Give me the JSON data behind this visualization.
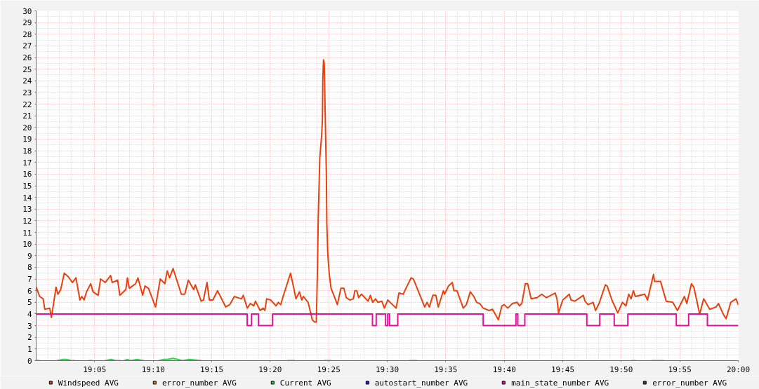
{
  "chart_data": {
    "type": "line",
    "xlim": [
      19.0,
      20.0
    ],
    "xticks": [
      {
        "value": 19.0833,
        "label": "19:05"
      },
      {
        "value": 19.1667,
        "label": "19:10"
      },
      {
        "value": 19.25,
        "label": "19:15"
      },
      {
        "value": 19.3333,
        "label": "19:20"
      },
      {
        "value": 19.4167,
        "label": "19:25"
      },
      {
        "value": 19.5,
        "label": "19:30"
      },
      {
        "value": 19.5833,
        "label": "19:35"
      },
      {
        "value": 19.6667,
        "label": "19:40"
      },
      {
        "value": 19.75,
        "label": "19:45"
      },
      {
        "value": 19.8333,
        "label": "19:50"
      },
      {
        "value": 19.9167,
        "label": "19:55"
      },
      {
        "value": 20.0,
        "label": "20:00"
      }
    ],
    "ylim": [
      0,
      30
    ],
    "yticks": [
      0,
      1,
      2,
      3,
      4,
      5,
      6,
      7,
      8,
      9,
      10,
      11,
      12,
      13,
      14,
      15,
      16,
      17,
      18,
      19,
      20,
      21,
      22,
      23,
      24,
      25,
      26,
      27,
      28,
      29,
      30
    ],
    "grid": true,
    "legend": "bottom",
    "series": [
      {
        "name": "Windspeed AVG",
        "color": "#e9400e",
        "x": [
          19.0,
          19.005,
          19.01,
          19.0123,
          19.0193,
          19.0217,
          19.0243,
          19.0283,
          19.031,
          19.035,
          19.04,
          19.0457,
          19.0517,
          19.0567,
          19.0623,
          19.065,
          19.0683,
          19.0717,
          19.0777,
          19.081,
          19.0883,
          19.0917,
          19.0983,
          19.106,
          19.1083,
          19.116,
          19.1193,
          19.1277,
          19.13,
          19.1327,
          19.1417,
          19.145,
          19.1517,
          19.155,
          19.16,
          19.17,
          19.1767,
          19.1833,
          19.1867,
          19.19,
          19.195,
          19.2067,
          19.2117,
          19.2167,
          19.2243,
          19.2267,
          19.235,
          19.2383,
          19.2433,
          19.2467,
          19.2517,
          19.2583,
          19.27,
          19.2757,
          19.2823,
          19.2923,
          19.295,
          19.3007,
          19.305,
          19.31,
          19.3123,
          19.319,
          19.3233,
          19.3257,
          19.3283,
          19.334,
          19.3417,
          19.345,
          19.3483,
          19.3517,
          19.3623,
          19.3673,
          19.37,
          19.375,
          19.3783,
          19.3807,
          19.3873,
          19.3933,
          19.3967,
          19.399,
          19.4007,
          19.4017,
          19.403,
          19.404,
          19.4067,
          19.4077,
          19.4083,
          19.4093,
          19.4103,
          19.411,
          19.4123,
          19.4133,
          19.414,
          19.4153,
          19.4173,
          19.42,
          19.424,
          19.429,
          19.434,
          19.4383,
          19.4417,
          19.4467,
          19.4517,
          19.454,
          19.4567,
          19.4593,
          19.4633,
          19.4727,
          19.476,
          19.4793,
          19.4833,
          19.4867,
          19.4923,
          19.496,
          19.5007,
          19.5127,
          19.5167,
          19.5227,
          19.534,
          19.5373,
          19.5533,
          19.5567,
          19.56,
          19.565,
          19.5693,
          19.5727,
          19.58,
          19.5817,
          19.5873,
          19.5927,
          19.595,
          19.5993,
          19.6083,
          19.6127,
          19.6183,
          19.6233,
          19.6273,
          19.6317,
          19.6367,
          19.645,
          19.65,
          19.6583,
          19.6633,
          19.6667,
          19.6717,
          19.6783,
          19.685,
          19.6883,
          19.6917,
          19.6967,
          19.7,
          19.705,
          19.7133,
          19.72,
          19.7267,
          19.7393,
          19.7417,
          19.744,
          19.75,
          19.7593,
          19.7617,
          19.7673,
          19.7793,
          19.7817,
          19.786,
          19.7933,
          19.7967,
          19.8017,
          19.8107,
          19.8133,
          19.82,
          19.8283,
          19.835,
          19.84,
          19.844,
          19.8473,
          19.8507,
          19.8533,
          19.8667,
          19.8707,
          19.8793,
          19.8807,
          19.8893,
          19.8973,
          19.9067,
          19.9133,
          19.9233,
          19.9267,
          19.9333,
          19.9367,
          19.945,
          19.9507,
          19.9593,
          19.9683,
          19.9717,
          19.9793,
          19.9827,
          19.9893,
          19.9967,
          20.0
        ],
        "values": [
          6.3,
          5.5,
          5.3,
          4.4,
          4.5,
          3.7,
          4.7,
          6.3,
          5.7,
          6.1,
          7.5,
          7.2,
          6.7,
          7.1,
          5.2,
          5.5,
          5.2,
          5.9,
          6.6,
          5.9,
          5.6,
          7.0,
          6.7,
          7.3,
          6.7,
          6.9,
          5.6,
          6.1,
          7.1,
          6.2,
          6.6,
          7.1,
          5.6,
          6.4,
          6.2,
          4.6,
          7.0,
          6.6,
          7.7,
          7.1,
          7.9,
          5.7,
          5.7,
          6.9,
          6.1,
          6.5,
          5.1,
          5.2,
          6.7,
          5.2,
          5.2,
          6.0,
          4.6,
          4.8,
          5.5,
          5.3,
          5.6,
          4.5,
          4.9,
          4.7,
          5.1,
          4.3,
          4.5,
          4.3,
          5.3,
          5.2,
          4.7,
          5.0,
          4.8,
          5.5,
          7.5,
          6.1,
          5.3,
          5.9,
          5.2,
          5.5,
          5.0,
          3.5,
          3.3,
          3.3,
          8.0,
          12.1,
          15.1,
          17.4,
          19.4,
          20.7,
          24.3,
          25.8,
          25.5,
          23.3,
          19.1,
          16.1,
          11.7,
          9.2,
          7.5,
          6.2,
          5.6,
          4.8,
          6.2,
          6.2,
          5.4,
          5.2,
          5.3,
          6.0,
          6.0,
          5.4,
          5.7,
          5.1,
          5.6,
          5.0,
          5.3,
          5.0,
          5.1,
          4.5,
          5.2,
          4.5,
          5.8,
          5.7,
          7.1,
          7.0,
          4.6,
          5.0,
          4.6,
          5.6,
          5.6,
          4.6,
          6.0,
          5.7,
          6.4,
          6.7,
          6.0,
          6.0,
          4.5,
          4.8,
          5.9,
          5.5,
          5.0,
          4.9,
          4.5,
          4.3,
          4.4,
          3.5,
          4.7,
          4.8,
          4.5,
          4.9,
          5.0,
          4.7,
          4.9,
          6.6,
          6.6,
          5.3,
          5.4,
          5.7,
          5.4,
          5.8,
          5.3,
          4.1,
          5.2,
          5.7,
          5.2,
          5.1,
          5.6,
          5.1,
          4.8,
          5.0,
          4.3,
          4.9,
          6.5,
          6.4,
          5.2,
          4.1,
          5.0,
          4.7,
          5.7,
          5.3,
          6.0,
          5.5,
          5.7,
          5.2,
          7.4,
          6.8,
          6.8,
          5.1,
          5.0,
          4.3,
          5.5,
          4.9,
          6.6,
          6.3,
          4.0,
          5.3,
          4.4,
          4.6,
          4.9,
          3.9,
          3.6,
          5.0,
          5.3,
          4.8
        ]
      },
      {
        "name": "error_number AVG",
        "color": "#ee7f12"
      },
      {
        "name": "Current AVG",
        "color": "#22dd48",
        "x": [
          19.0,
          19.005,
          19.0067,
          19.03,
          19.0383,
          19.0433,
          19.05,
          19.055,
          19.06,
          19.075,
          19.08,
          19.0867,
          19.0983,
          19.1067,
          19.1133,
          19.12,
          19.1225,
          19.125,
          19.13,
          19.135,
          19.1433,
          19.1533,
          19.1633,
          19.175,
          19.1817,
          19.1867,
          19.195,
          19.2017,
          19.2083,
          19.2183,
          19.235,
          19.2417,
          19.3583,
          19.3683,
          19.3717,
          19.41,
          19.42,
          19.425,
          19.5317,
          19.5417,
          19.5467,
          19.8483,
          19.8533,
          19.855,
          19.8767,
          19.8933
        ],
        "values": [
          0,
          0,
          null,
          0,
          0.1,
          0.1,
          0,
          0,
          null,
          0,
          0,
          null,
          0,
          0.1,
          0,
          0,
          null,
          0,
          0.1,
          0,
          0.1,
          0,
          null,
          0,
          0.1,
          0.1,
          0.2,
          0.1,
          0,
          0.1,
          0,
          null,
          0,
          0,
          null,
          0,
          0,
          null,
          0,
          0,
          null,
          0,
          0,
          null,
          0,
          0
        ]
      },
      {
        "name": "autostart_number AVG",
        "color": "#2e1ef0"
      },
      {
        "name": "main_state_number AVG",
        "color": "#e2139a",
        "type": "step",
        "x": [
          19.0,
          19.3005,
          19.3067,
          19.3167,
          19.3367,
          19.479,
          19.4843,
          19.4977,
          19.5007,
          19.5033,
          19.515,
          19.6367,
          19.6833,
          19.686,
          19.696,
          19.7843,
          19.8027,
          19.8233,
          19.8427,
          19.9117,
          19.9293,
          19.956,
          20.0
        ],
        "values": [
          4,
          3,
          4,
          3,
          4,
          3,
          4,
          3,
          4,
          3,
          4,
          3,
          4,
          3,
          4,
          3,
          4,
          3,
          4,
          3,
          4,
          3,
          3
        ]
      },
      {
        "name": "error_number AVG",
        "color": "#4a4a4a"
      }
    ]
  }
}
